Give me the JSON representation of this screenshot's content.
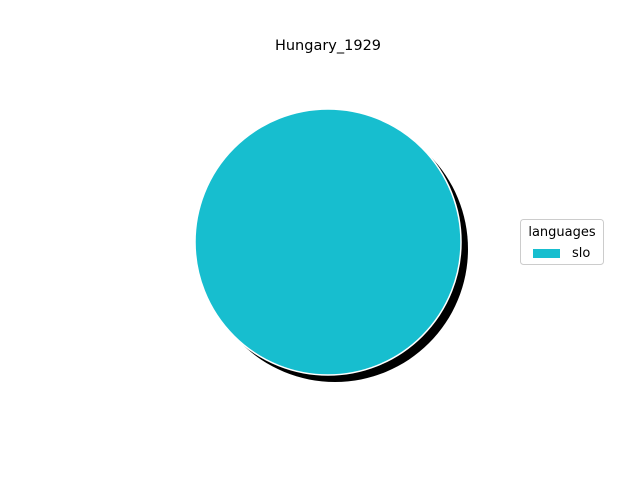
{
  "chart_data": {
    "type": "pie",
    "title": "Hungary_1929",
    "categories": [
      "slo"
    ],
    "values": [
      1.0
    ],
    "colors": [
      "#17becf"
    ],
    "shadow": true,
    "shadow_color": "#000000",
    "legend": {
      "title": "languages",
      "entries": [
        "slo"
      ],
      "placement": "center-right"
    }
  }
}
